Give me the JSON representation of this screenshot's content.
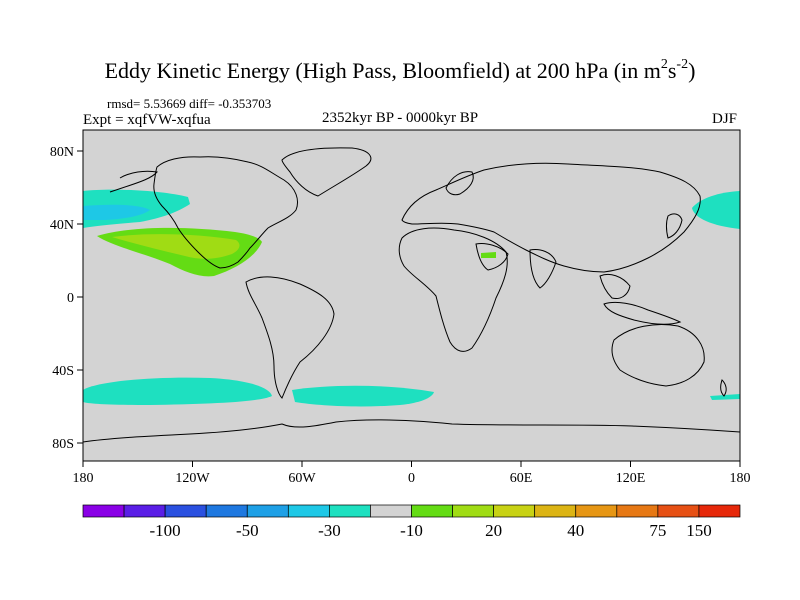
{
  "title": {
    "main": "Eddy Kinetic Energy (High Pass, Bloomfield) at 200 hPa (in m",
    "unit_m_exp": "2",
    "unit_s": "s",
    "unit_s_exp": "-2",
    "close": ")"
  },
  "stats": {
    "rmsd_diff": "rmsd= 5.53669 diff= -0.353703"
  },
  "experiment": "Expt = xqfVW-xqfua",
  "period": "2352kyr BP - 0000kyr BP",
  "season": "DJF",
  "map": {
    "background_color": "#d3d3d3",
    "lat_ticks": [
      "80N",
      "40N",
      "0",
      "40S",
      "80S"
    ],
    "lon_ticks": [
      "180",
      "120W",
      "60W",
      "0",
      "60E",
      "120E",
      "180"
    ]
  },
  "colorbar": {
    "colors": [
      "#8a00e6",
      "#5a1ee6",
      "#2a50e0",
      "#1e78e0",
      "#1ea0e6",
      "#1ec8e6",
      "#1ee0c0",
      "#d3d3d3",
      "#64dc14",
      "#a0dc14",
      "#c8d214",
      "#dcb414",
      "#e69614",
      "#e67814",
      "#e65014",
      "#e6280a"
    ],
    "labels": [
      "-100",
      "-50",
      "-30",
      "-10",
      "20",
      "40",
      "75",
      "150"
    ]
  }
}
